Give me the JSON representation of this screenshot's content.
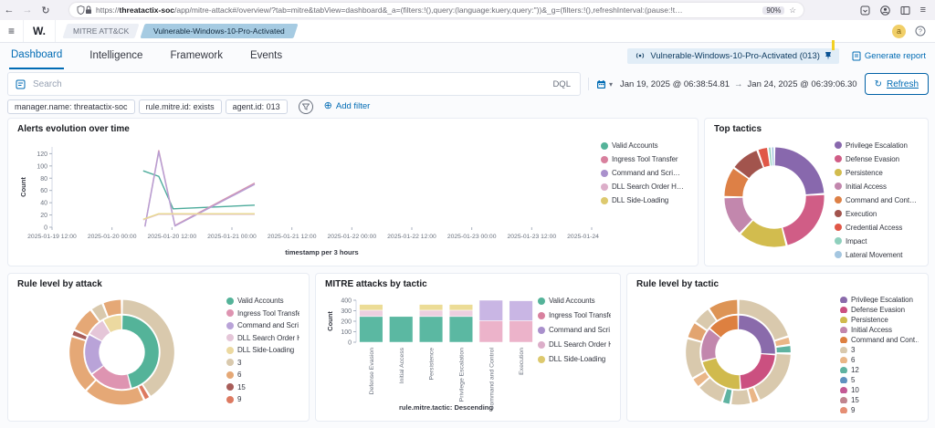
{
  "browser": {
    "back": "←",
    "forward": "→",
    "reload": "↻",
    "star": "☆",
    "menu": "≡",
    "url_prefix": "https://",
    "url_host": "threatactix-soc",
    "url_rest": "/app/mitre-attack#/overview/?tab=mitre&tabView=dashboard&_a=(filters:!(),query:(language:kuery,query:''))&_g=(filters:!(),refreshInterval:(pause:!t…",
    "zoom": "90%"
  },
  "topnav": {
    "menu": "≡",
    "logo": "W.",
    "breadcrumb_app": "MITRE ATT&CK",
    "breadcrumb_agent": "Vulnerable-Windows-10-Pro-Activated",
    "avatar": "a"
  },
  "tabs": [
    {
      "label": "Dashboard",
      "selected": true
    },
    {
      "label": "Intelligence",
      "selected": false
    },
    {
      "label": "Framework",
      "selected": false
    },
    {
      "label": "Events",
      "selected": false
    }
  ],
  "header": {
    "agent_button": "Vulnerable-Windows-10-Pro-Activated (013)",
    "generate_report": "Generate report"
  },
  "query": {
    "placeholder": "Search",
    "dql": "DQL",
    "caret": "▾",
    "date_from": "Jan 19, 2025 @ 06:38:54.81",
    "arrow": "→",
    "date_to": "Jan 24, 2025 @ 06:39:06.30",
    "refresh": "Refresh",
    "refresh_icon": "↻"
  },
  "filters": {
    "items": [
      "manager.name: threatactix-soc",
      "rule.mitre.id: exists",
      "agent.id: 013"
    ],
    "add_icon": "⊕",
    "add_label": "Add filter"
  },
  "chart_data": [
    {
      "type": "line",
      "title": "Alerts evolution over time",
      "xlabel": "timestamp per 3 hours",
      "ylabel": "Count",
      "ylim": [
        0,
        131
      ],
      "yticks": [
        0,
        20,
        40,
        60,
        80,
        100,
        120
      ],
      "xticks": [
        "2025-01-19 12:00",
        "2025-01-20 00:00",
        "2025-01-20 12:00",
        "2025-01-21 00:00",
        "2025-01-21 12:00",
        "2025-01-22 00:00",
        "2025-01-22 12:00",
        "2025-01-23 00:00",
        "2025-01-23 12:00",
        "2025-01-24 00:00"
      ],
      "legend": [
        {
          "label": "Valid Accounts",
          "color": "#54b399"
        },
        {
          "label": "Ingress Tool Transfer",
          "color": "#d8809e"
        },
        {
          "label": "Command and Scri…",
          "color": "#a990cc"
        },
        {
          "label": "DLL Search Order H…",
          "color": "#dcaec9"
        },
        {
          "label": "DLL Side-Loading",
          "color": "#ddc96e"
        }
      ],
      "series": [
        {
          "name": "Valid Accounts",
          "color": "#4cab9b",
          "points": [
            [
              1.52,
              92
            ],
            [
              1.78,
              83
            ],
            [
              2.02,
              30
            ],
            [
              3.38,
              36
            ]
          ]
        },
        {
          "name": "Ingress Tool Transfer",
          "color": "#d493b0",
          "points": [
            [
              1.55,
              2
            ],
            [
              1.78,
              125
            ],
            [
              2.05,
              3
            ],
            [
              3.38,
              72
            ]
          ]
        },
        {
          "name": "Command and Scripting Interpreter",
          "color": "#b79fd4",
          "points": [
            [
              1.55,
              1
            ],
            [
              1.78,
              123
            ],
            [
              2.05,
              2
            ],
            [
              3.38,
              70
            ]
          ]
        },
        {
          "name": "DLL Search Order Hijacking",
          "color": "#e3c8d8",
          "points": [
            [
              1.52,
              12
            ],
            [
              1.78,
              21
            ],
            [
              2.05,
              21
            ],
            [
              3.38,
              21
            ]
          ]
        },
        {
          "name": "DLL Side-Loading",
          "color": "#e8d88c",
          "points": [
            [
              1.52,
              13
            ],
            [
              1.78,
              22
            ],
            [
              2.05,
              22
            ],
            [
              3.38,
              22
            ]
          ]
        }
      ]
    },
    {
      "type": "donut",
      "title": "Top tactics",
      "legend": [
        {
          "label": "Privilege Escalation",
          "color": "#8868ad"
        },
        {
          "label": "Defense Evasion",
          "color": "#d05d86"
        },
        {
          "label": "Persistence",
          "color": "#d2bc4e"
        },
        {
          "label": "Initial Access",
          "color": "#c287ad"
        },
        {
          "label": "Command and Cont…",
          "color": "#dd8046"
        },
        {
          "label": "Execution",
          "color": "#a2544d"
        },
        {
          "label": "Credential Access",
          "color": "#e05747"
        },
        {
          "label": "Impact",
          "color": "#8fd0bd"
        },
        {
          "label": "Lateral Movement",
          "color": "#a4c6e0"
        }
      ],
      "rings": [
        {
          "r0": 0.56,
          "r1": 0.88,
          "segments": [
            {
              "label": "Privilege Escalation",
              "value": 24,
              "color": "#8868ad"
            },
            {
              "label": "Defense Evasion",
              "value": 22,
              "color": "#d05d86"
            },
            {
              "label": "Persistence",
              "value": 16,
              "color": "#d2bc4e"
            },
            {
              "label": "Initial Access",
              "value": 13,
              "color": "#c287ad"
            },
            {
              "label": "Command and Control",
              "value": 10,
              "color": "#dd8046"
            },
            {
              "label": "Execution",
              "value": 9.5,
              "color": "#a2544d"
            },
            {
              "label": "Credential Access",
              "value": 3.5,
              "color": "#e05747"
            },
            {
              "label": "Impact",
              "value": 1,
              "color": "#8fd0bd"
            },
            {
              "label": "Lateral Movement",
              "value": 1,
              "color": "#a4c6e0"
            }
          ]
        }
      ]
    },
    {
      "type": "sunburst",
      "title": "Rule level by attack",
      "legend": [
        {
          "label": "Valid Accounts",
          "color": "#54b399"
        },
        {
          "label": "Ingress Tool Transfer",
          "color": "#de94b1"
        },
        {
          "label": "Command and Scri…",
          "color": "#b9a3d8"
        },
        {
          "label": "DLL Search Order H…",
          "color": "#e5c6d8"
        },
        {
          "label": "DLL Side-Loading",
          "color": "#ecd9a0"
        },
        {
          "label": "3",
          "color": "#d9c9ad"
        },
        {
          "label": "6",
          "color": "#e5a876"
        },
        {
          "label": "15",
          "color": "#a85d59"
        },
        {
          "label": "9",
          "color": "#dd7a61"
        }
      ],
      "rings": [
        {
          "r0": 0.4,
          "r1": 0.64,
          "segments": [
            {
              "label": "Valid Accounts",
              "value": 46,
              "color": "#54b399"
            },
            {
              "label": "Ingress Tool Transfer",
              "value": 19,
              "color": "#de94b1"
            },
            {
              "label": "Command and Scripting Interpreter",
              "value": 18,
              "color": "#b9a3d8"
            },
            {
              "label": "DLL Search Order Hijacking",
              "value": 8.5,
              "color": "#e5c6d8"
            },
            {
              "label": "DLL Side-Loading",
              "value": 8.5,
              "color": "#ecd9a0"
            }
          ]
        },
        {
          "r0": 0.67,
          "r1": 0.91,
          "segments": [
            {
              "label": "3",
              "value": 41,
              "color": "#d9c9ad"
            },
            {
              "label": "9",
              "value": 2,
              "color": "#dd7a61"
            },
            {
              "label": "6",
              "value": 19,
              "color": "#e5a876"
            },
            {
              "label": "6",
              "value": 18,
              "color": "#e5a876"
            },
            {
              "label": "15",
              "value": 2,
              "color": "#a85d59"
            },
            {
              "label": "6",
              "value": 8,
              "color": "#e5a876"
            },
            {
              "label": "3",
              "value": 4,
              "color": "#d9c9ad"
            },
            {
              "label": "6",
              "value": 6,
              "color": "#e5a876"
            }
          ]
        }
      ]
    },
    {
      "type": "bar",
      "title": "MITRE attacks by tactic",
      "xlabel": "rule.mitre.tactic: Descending",
      "ylabel": "Count",
      "ylim": [
        0,
        400
      ],
      "yticks": [
        0,
        100,
        200,
        300,
        400
      ],
      "categories": [
        "Defense Evasion",
        "Initial Access",
        "Persistence",
        "Privilege Escalation",
        "Command and Control",
        "Execution"
      ],
      "legend": [
        {
          "label": "Valid Accounts",
          "color": "#54b399"
        },
        {
          "label": "Ingress Tool Transfer",
          "color": "#d8809e"
        },
        {
          "label": "Command and Scri…",
          "color": "#a990cc"
        },
        {
          "label": "DLL Search Order H…",
          "color": "#dcaec9"
        },
        {
          "label": "DLL Side-Loading",
          "color": "#ddc96e"
        }
      ],
      "series": [
        {
          "name": "Valid Accounts",
          "color": "#5bb8a2",
          "values": [
            245,
            245,
            245,
            245,
            0,
            0
          ]
        },
        {
          "name": "Ingress Tool Transfer",
          "color": "#ecb3ca",
          "values": [
            0,
            0,
            0,
            0,
            205,
            205
          ]
        },
        {
          "name": "Command and Scripting Interpreter",
          "color": "#c9b6e4",
          "values": [
            0,
            0,
            0,
            0,
            195,
            190
          ]
        },
        {
          "name": "DLL Search Order Hijacking",
          "color": "#edcfdf",
          "values": [
            60,
            0,
            60,
            60,
            0,
            0
          ]
        },
        {
          "name": "DLL Side-Loading",
          "color": "#ecdc96",
          "values": [
            55,
            0,
            55,
            55,
            0,
            0
          ]
        }
      ]
    },
    {
      "type": "sunburst",
      "title": "Rule level by tactic",
      "legend": [
        {
          "label": "Privilege Escalation",
          "color": "#8a6bab"
        },
        {
          "label": "Defense Evasion",
          "color": "#cb5080"
        },
        {
          "label": "Persistence",
          "color": "#d0ba4d"
        },
        {
          "label": "Initial Access",
          "color": "#c287ad"
        },
        {
          "label": "Command and Cont…",
          "color": "#dd8040"
        },
        {
          "label": "3",
          "color": "#d9c9ad"
        },
        {
          "label": "6",
          "color": "#eab687"
        },
        {
          "label": "12",
          "color": "#5fb3a1"
        },
        {
          "label": "5",
          "color": "#6092c0"
        },
        {
          "label": "10",
          "color": "#c45a95"
        },
        {
          "label": "15",
          "color": "#c0858f"
        },
        {
          "label": "9",
          "color": "#e58e74"
        }
      ],
      "rings": [
        {
          "r0": 0.4,
          "r1": 0.64,
          "segments": [
            {
              "label": "Privilege Escalation",
              "value": 26,
              "color": "#8a6bab"
            },
            {
              "label": "Defense Evasion",
              "value": 23,
              "color": "#cb5080"
            },
            {
              "label": "Persistence",
              "value": 22,
              "color": "#d0ba4d"
            },
            {
              "label": "Initial Access",
              "value": 15,
              "color": "#c287ad"
            },
            {
              "label": "Command and Control",
              "value": 14,
              "color": "#dd8040"
            }
          ]
        },
        {
          "r0": 0.67,
          "r1": 0.91,
          "segments": [
            {
              "label": "3",
              "value": 19,
              "color": "#d9c9ad"
            },
            {
              "label": "6",
              "value": 2.5,
              "color": "#eab687"
            },
            {
              "label": "12",
              "value": 2.5,
              "color": "#5fb3a1"
            },
            {
              "label": "3",
              "value": 17,
              "color": "#d9c9ad"
            },
            {
              "label": "6",
              "value": 2.5,
              "color": "#eab687"
            },
            {
              "label": "3",
              "value": 6,
              "color": "#d9c9ad"
            },
            {
              "label": "12",
              "value": 2.5,
              "color": "#5fb3a1"
            },
            {
              "label": "3",
              "value": 8,
              "color": "#d9c9ad"
            },
            {
              "label": "6",
              "value": 3,
              "color": "#eab687"
            },
            {
              "label": "3",
              "value": 12,
              "color": "#d9c9ad"
            },
            {
              "label": "6",
              "value": 5,
              "color": "#e2a470"
            },
            {
              "label": "3",
              "value": 5.5,
              "color": "#d9c9ad"
            },
            {
              "label": "6",
              "value": 9,
              "color": "#dd9455"
            }
          ]
        }
      ]
    }
  ]
}
